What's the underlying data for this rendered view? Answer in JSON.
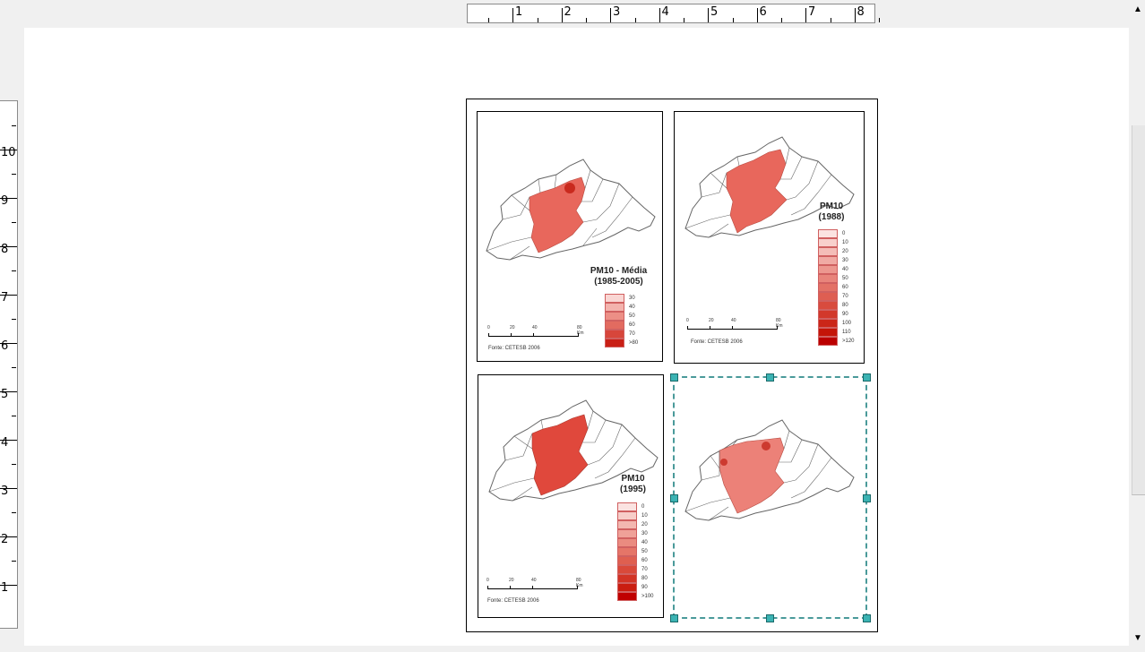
{
  "hruler": {
    "numbers": [
      "1",
      "2",
      "3",
      "4",
      "5",
      "6",
      "7",
      "8"
    ]
  },
  "vruler": {
    "numbers": [
      "10",
      "9",
      "8",
      "7",
      "6",
      "5",
      "4",
      "3",
      "2",
      "1"
    ]
  },
  "scroll_arrows": {
    "up": "▲",
    "down": "▼"
  },
  "maps": [
    {
      "title_line1": "PM10 - Média",
      "title_line2": "(1985-2005)",
      "legend": [
        "30",
        "40",
        "50",
        "60",
        "70",
        ">80"
      ],
      "legend_colors": [
        "#f9d6d3",
        "#f3b3ad",
        "#ec8f86",
        "#e26b60",
        "#d7463b",
        "#c91f15"
      ],
      "scale_labels": [
        "0",
        "20",
        "40",
        "80 Km"
      ],
      "source": "Fonte: CETESB 2006"
    },
    {
      "title_line1": "PM10",
      "title_line2": "(1988)",
      "legend": [
        "0",
        "10",
        "20",
        "30",
        "40",
        "50",
        "60",
        "70",
        "80",
        "90",
        "100",
        "110",
        ">120"
      ],
      "legend_colors": [
        "#fbe3e1",
        "#f8d0cc",
        "#f4bdb8",
        "#f0aaa4",
        "#ec978f",
        "#e8847b",
        "#e37166",
        "#de5e52",
        "#d84b3e",
        "#d2382b",
        "#cb2618",
        "#c41508",
        "#bb0000"
      ],
      "scale_labels": [
        "0",
        "20",
        "40",
        "80 Km"
      ],
      "source": "Fonte: CETESB 2006"
    },
    {
      "title_line1": "PM10",
      "title_line2": "(1995)",
      "legend": [
        "0",
        "10",
        "20",
        "30",
        "40",
        "50",
        "60",
        "70",
        "80",
        "90",
        ">100"
      ],
      "legend_colors": [
        "#fbe3e1",
        "#f7cdc8",
        "#f3b7b0",
        "#efa198",
        "#ea8b80",
        "#e57568",
        "#df5f50",
        "#d9493a",
        "#d23325",
        "#ca1d10",
        "#c00000"
      ],
      "scale_labels": [
        "0",
        "20",
        "40",
        "80 Km"
      ],
      "source": "Fonte: CETESB 2006"
    }
  ],
  "colors": {
    "selection": "#4a9a9a",
    "handle": "#3bb3b3",
    "map_fill": "#e8675c",
    "map_outline": "#666666"
  }
}
